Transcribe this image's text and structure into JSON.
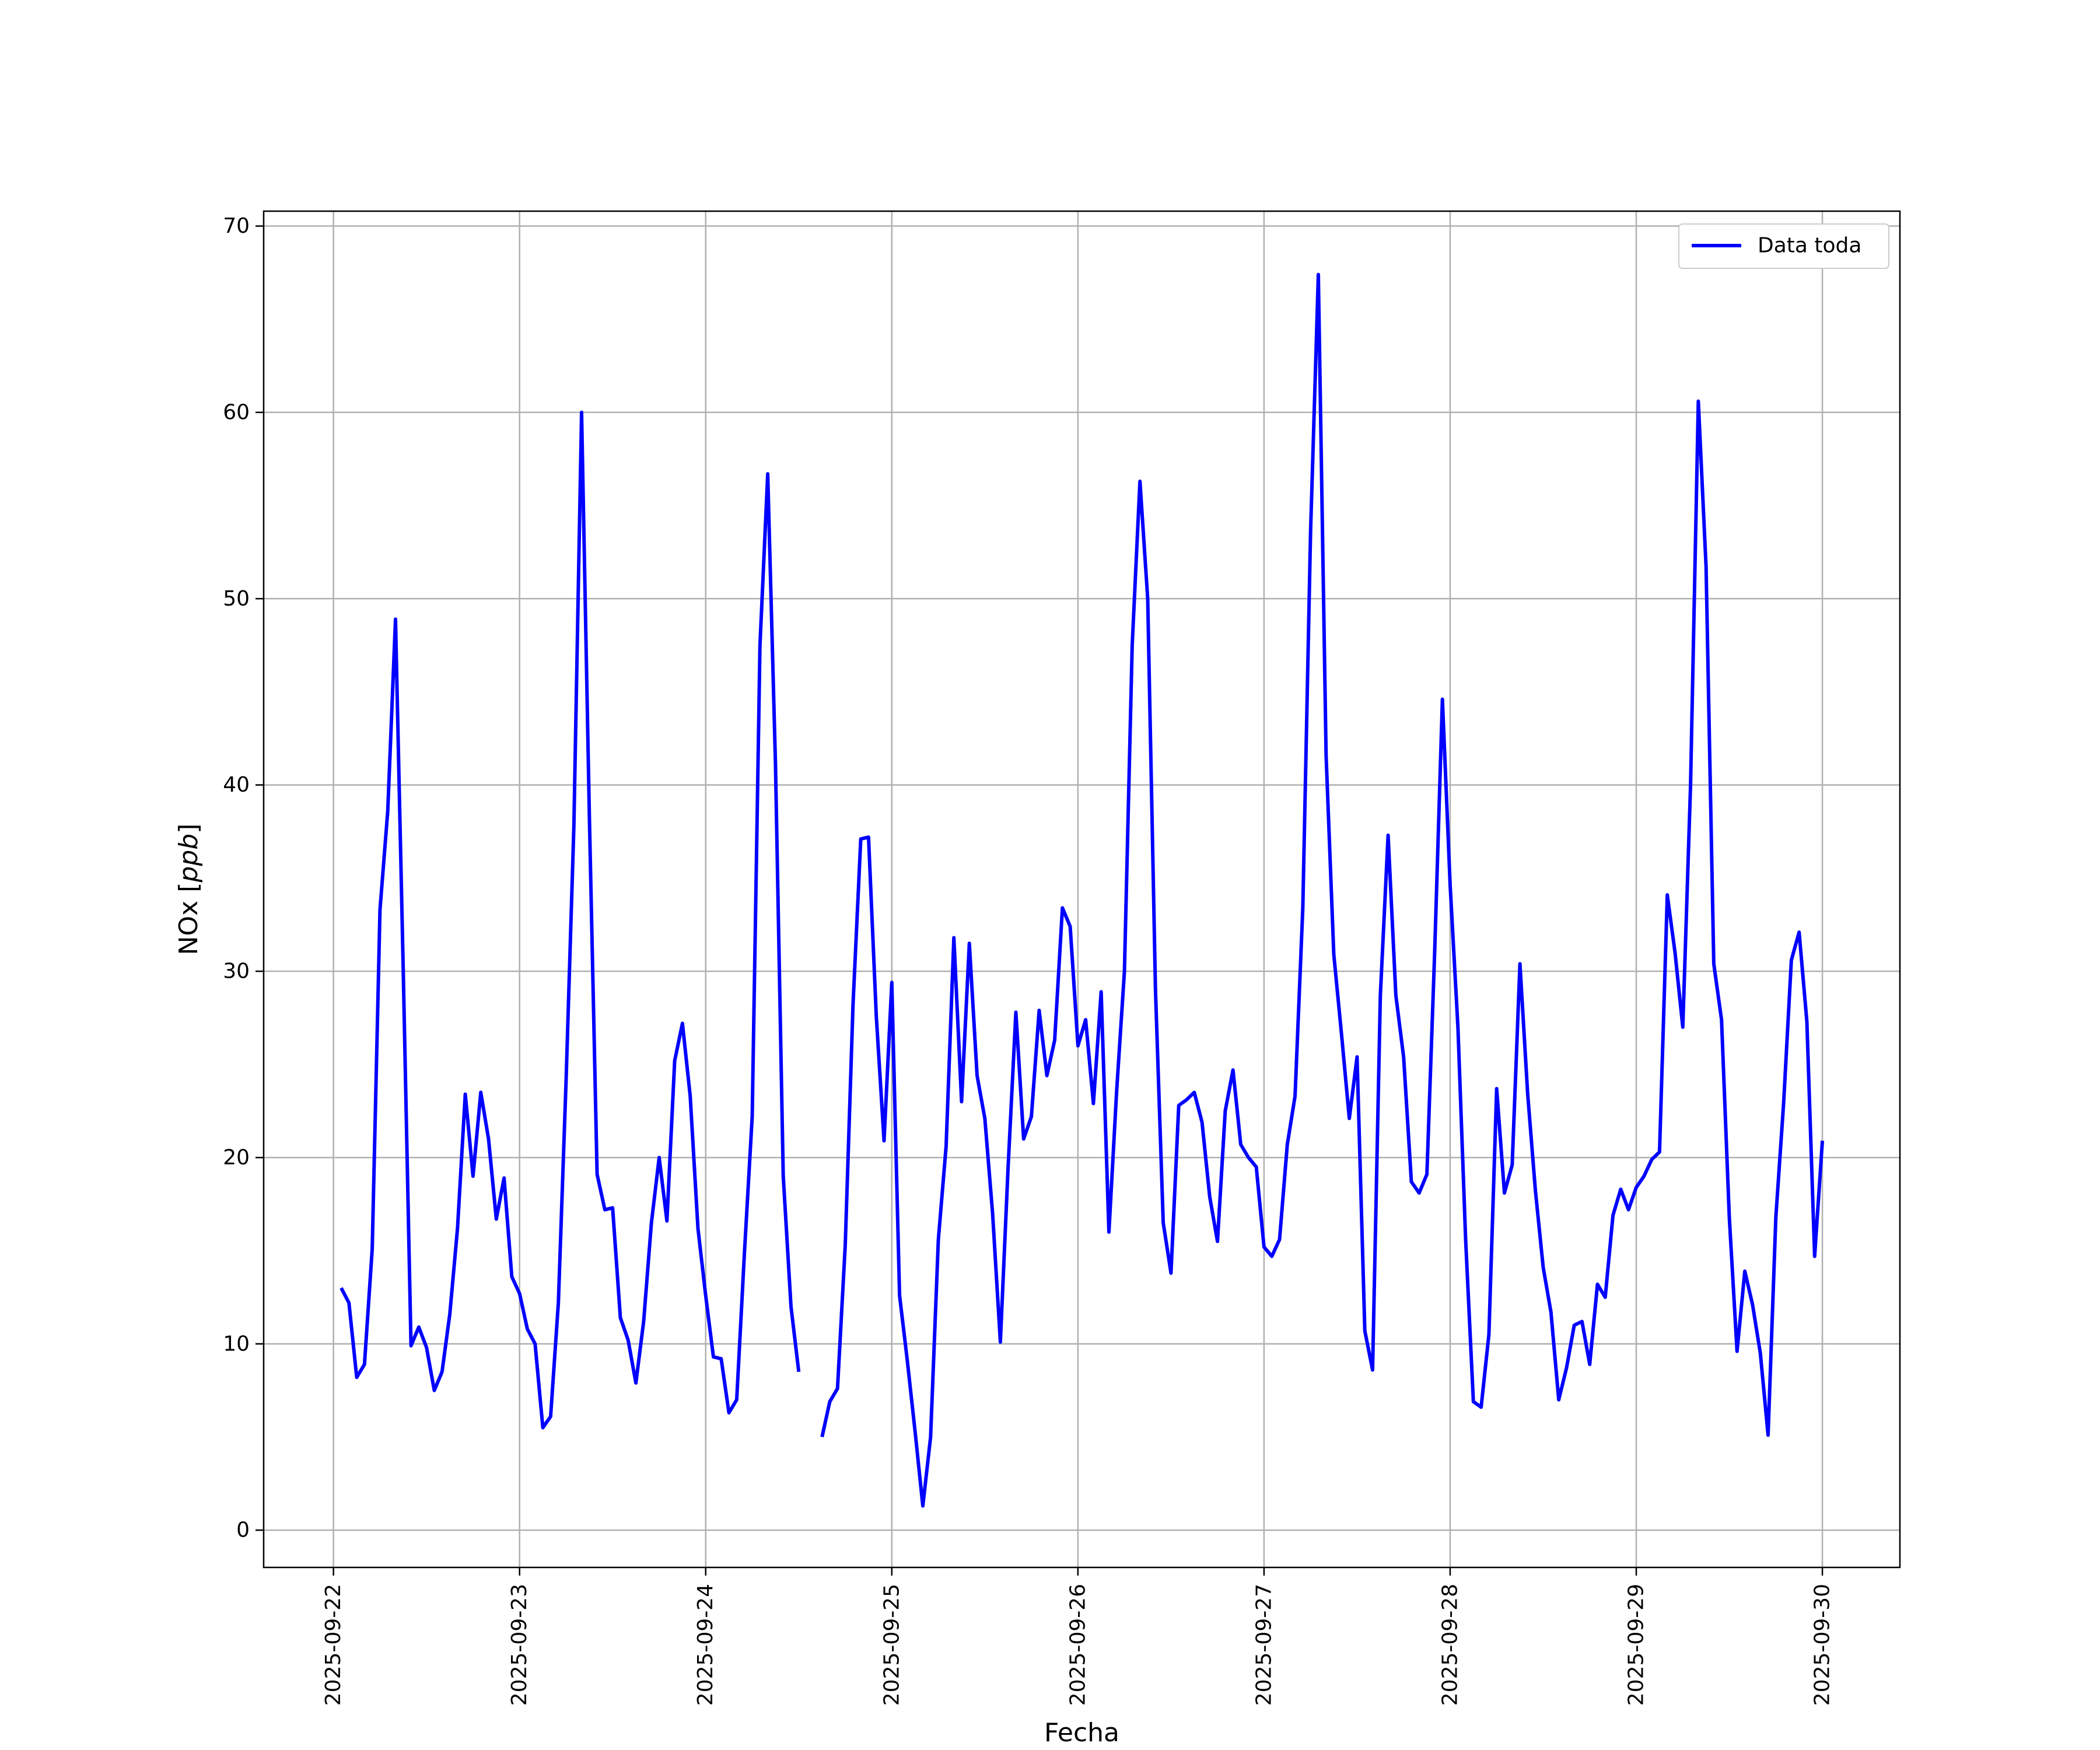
{
  "chart_data": {
    "type": "line",
    "xlabel": "Fecha",
    "ylabel": "NOx [ppb]",
    "ylabel_parts": {
      "text": "NOx ",
      "open": "[",
      "unit": "ppb",
      "close": "]"
    },
    "x_ticks": [
      "2025-09-22",
      "2025-09-23",
      "2025-09-24",
      "2025-09-25",
      "2025-09-26",
      "2025-09-27",
      "2025-09-28",
      "2025-09-29",
      "2025-09-30"
    ],
    "y_ticks": [
      "0",
      "10",
      "20",
      "30",
      "40",
      "50",
      "60",
      "70"
    ],
    "xlim": [
      "2025-09-21T15:00",
      "2025-09-30T10:00"
    ],
    "ylim": [
      -2,
      70.8
    ],
    "grid": true,
    "legend": {
      "position": "top-right",
      "entries": [
        "Data toda"
      ]
    },
    "colors": {
      "line": "#0000ff",
      "grid": "#b0b0b0",
      "frame": "#000000"
    },
    "series": [
      {
        "name": "Data toda",
        "color": "#0000ff",
        "x": [
          "2025-09-22T01:00",
          "2025-09-22T02:00",
          "2025-09-22T03:00",
          "2025-09-22T04:00",
          "2025-09-22T05:00",
          "2025-09-22T06:00",
          "2025-09-22T07:00",
          "2025-09-22T08:00",
          "2025-09-22T09:00",
          "2025-09-22T10:00",
          "2025-09-22T11:00",
          "2025-09-22T12:00",
          "2025-09-22T13:00",
          "2025-09-22T14:00",
          "2025-09-22T15:00",
          "2025-09-22T16:00",
          "2025-09-22T17:00",
          "2025-09-22T18:00",
          "2025-09-22T19:00",
          "2025-09-22T20:00",
          "2025-09-22T21:00",
          "2025-09-22T22:00",
          "2025-09-22T23:00",
          "2025-09-23T00:00",
          "2025-09-23T01:00",
          "2025-09-23T02:00",
          "2025-09-23T03:00",
          "2025-09-23T04:00",
          "2025-09-23T05:00",
          "2025-09-23T06:00",
          "2025-09-23T07:00",
          "2025-09-23T08:00",
          "2025-09-23T09:00",
          "2025-09-23T10:00",
          "2025-09-23T11:00",
          "2025-09-23T12:00",
          "2025-09-23T13:00",
          "2025-09-23T14:00",
          "2025-09-23T15:00",
          "2025-09-23T16:00",
          "2025-09-23T17:00",
          "2025-09-23T18:00",
          "2025-09-23T19:00",
          "2025-09-23T20:00",
          "2025-09-23T21:00",
          "2025-09-23T22:00",
          "2025-09-23T23:00",
          "2025-09-24T00:00",
          "2025-09-24T01:00",
          "2025-09-24T02:00",
          "2025-09-24T03:00",
          "2025-09-24T04:00",
          "2025-09-24T05:00",
          "2025-09-24T06:00",
          "2025-09-24T07:00",
          "2025-09-24T08:00",
          "2025-09-24T09:00",
          "2025-09-24T10:00",
          "2025-09-24T11:00",
          "2025-09-24T12:00"
        ],
        "y": [
          13.0,
          12.2,
          8.2,
          8.9,
          15.1,
          33.3,
          38.6,
          48.9,
          30.0,
          9.9,
          10.9,
          9.8,
          7.5,
          8.5,
          11.6,
          16.2,
          23.4,
          19.0,
          23.5,
          21.0,
          16.7,
          18.9,
          13.6,
          12.7,
          10.8,
          10.0,
          5.5,
          6.1,
          12.2,
          24.2,
          37.8,
          60.0,
          38.4,
          19.1,
          17.2,
          17.3,
          11.4,
          10.2,
          7.9,
          11.2,
          16.5,
          20.0,
          16.6,
          25.2,
          27.2,
          23.3,
          16.2,
          12.6,
          9.3,
          9.2,
          6.3,
          7.0,
          14.9,
          22.2,
          47.5,
          56.7,
          41.1,
          19.0,
          12.0,
          8.5
        ]
      },
      {
        "name": "Data toda",
        "color": "#0000ff",
        "x": [
          "2025-09-24T15:00",
          "2025-09-24T16:00",
          "2025-09-24T17:00",
          "2025-09-24T18:00",
          "2025-09-24T19:00",
          "2025-09-24T20:00",
          "2025-09-24T21:00",
          "2025-09-24T22:00",
          "2025-09-24T23:00",
          "2025-09-25T00:00",
          "2025-09-25T01:00",
          "2025-09-25T02:00",
          "2025-09-25T03:00",
          "2025-09-25T04:00",
          "2025-09-25T05:00",
          "2025-09-25T06:00",
          "2025-09-25T07:00",
          "2025-09-25T08:00",
          "2025-09-25T09:00",
          "2025-09-25T10:00",
          "2025-09-25T11:00",
          "2025-09-25T12:00",
          "2025-09-25T13:00",
          "2025-09-25T14:00",
          "2025-09-25T15:00",
          "2025-09-25T16:00",
          "2025-09-25T17:00",
          "2025-09-25T18:00",
          "2025-09-25T19:00",
          "2025-09-25T20:00",
          "2025-09-25T21:00",
          "2025-09-25T22:00",
          "2025-09-25T23:00",
          "2025-09-26T00:00",
          "2025-09-26T01:00",
          "2025-09-26T02:00",
          "2025-09-26T03:00",
          "2025-09-26T04:00",
          "2025-09-26T05:00",
          "2025-09-26T06:00",
          "2025-09-26T07:00",
          "2025-09-26T08:00",
          "2025-09-26T09:00",
          "2025-09-26T10:00",
          "2025-09-26T11:00",
          "2025-09-26T12:00",
          "2025-09-26T13:00",
          "2025-09-26T14:00",
          "2025-09-26T15:00",
          "2025-09-26T16:00",
          "2025-09-26T17:00",
          "2025-09-26T18:00",
          "2025-09-26T19:00",
          "2025-09-26T20:00",
          "2025-09-26T21:00",
          "2025-09-26T22:00",
          "2025-09-26T23:00",
          "2025-09-27T00:00",
          "2025-09-27T01:00",
          "2025-09-27T02:00",
          "2025-09-27T03:00",
          "2025-09-27T04:00",
          "2025-09-27T05:00",
          "2025-09-27T06:00",
          "2025-09-27T07:00",
          "2025-09-27T08:00",
          "2025-09-27T09:00",
          "2025-09-27T10:00",
          "2025-09-27T11:00",
          "2025-09-27T12:00",
          "2025-09-27T13:00",
          "2025-09-27T14:00",
          "2025-09-27T15:00",
          "2025-09-27T16:00",
          "2025-09-27T17:00",
          "2025-09-27T18:00",
          "2025-09-27T19:00",
          "2025-09-27T20:00",
          "2025-09-27T21:00",
          "2025-09-27T22:00",
          "2025-09-27T23:00",
          "2025-09-28T00:00",
          "2025-09-28T01:00",
          "2025-09-28T02:00",
          "2025-09-28T03:00",
          "2025-09-28T04:00",
          "2025-09-28T05:00",
          "2025-09-28T06:00",
          "2025-09-28T07:00",
          "2025-09-28T08:00",
          "2025-09-28T09:00",
          "2025-09-28T10:00",
          "2025-09-28T11:00",
          "2025-09-28T12:00",
          "2025-09-28T13:00",
          "2025-09-28T14:00",
          "2025-09-28T15:00",
          "2025-09-28T16:00",
          "2025-09-28T17:00",
          "2025-09-28T18:00",
          "2025-09-28T19:00",
          "2025-09-28T20:00",
          "2025-09-28T21:00",
          "2025-09-28T22:00",
          "2025-09-28T23:00",
          "2025-09-29T00:00",
          "2025-09-29T01:00",
          "2025-09-29T02:00",
          "2025-09-29T03:00",
          "2025-09-29T04:00",
          "2025-09-29T05:00",
          "2025-09-29T06:00",
          "2025-09-29T07:00",
          "2025-09-29T08:00",
          "2025-09-29T09:00",
          "2025-09-29T10:00",
          "2025-09-29T11:00",
          "2025-09-29T12:00",
          "2025-09-29T13:00",
          "2025-09-29T14:00",
          "2025-09-29T15:00",
          "2025-09-29T16:00",
          "2025-09-29T17:00",
          "2025-09-29T18:00",
          "2025-09-29T19:00",
          "2025-09-29T20:00",
          "2025-09-29T21:00",
          "2025-09-29T22:00",
          "2025-09-29T23:00",
          "2025-09-30T00:00"
        ],
        "y": [
          5.0,
          6.9,
          7.6,
          15.3,
          28.2,
          37.1,
          37.2,
          27.6,
          20.9,
          29.4,
          12.6,
          9.1,
          5.3,
          1.3,
          5.0,
          15.6,
          20.6,
          31.8,
          23.0,
          31.5,
          24.4,
          22.1,
          17.0,
          10.1,
          19.5,
          27.8,
          21.0,
          22.2,
          27.9,
          24.4,
          26.3,
          33.4,
          32.4,
          26.0,
          27.4,
          22.9,
          28.9,
          16.0,
          23.6,
          30.0,
          47.5,
          56.3,
          50.0,
          29.0,
          16.5,
          13.8,
          22.8,
          23.1,
          23.5,
          21.9,
          17.9,
          15.5,
          22.5,
          24.7,
          20.7,
          20.0,
          19.5,
          15.2,
          14.7,
          15.6,
          20.7,
          23.3,
          33.4,
          53.6,
          67.4,
          41.6,
          30.9,
          26.6,
          22.1,
          25.4,
          10.7,
          8.6,
          28.7,
          37.3,
          28.7,
          25.4,
          18.7,
          18.1,
          19.1,
          31.0,
          44.6,
          34.6,
          27.0,
          15.6,
          6.9,
          6.6,
          10.5,
          23.7,
          18.1,
          19.6,
          30.4,
          23.4,
          18.2,
          14.1,
          11.7,
          7.0,
          8.7,
          11.0,
          11.2,
          8.9,
          13.2,
          12.5,
          16.9,
          18.3,
          17.2,
          18.4,
          19.0,
          19.9,
          20.3,
          34.1,
          31.0,
          27.0,
          40.0,
          60.6,
          51.7,
          30.4,
          27.4,
          16.8,
          9.6,
          13.9,
          12.1,
          9.5,
          5.1,
          16.8,
          22.9,
          30.6,
          32.1,
          27.3,
          14.7,
          20.9
        ]
      }
    ]
  }
}
